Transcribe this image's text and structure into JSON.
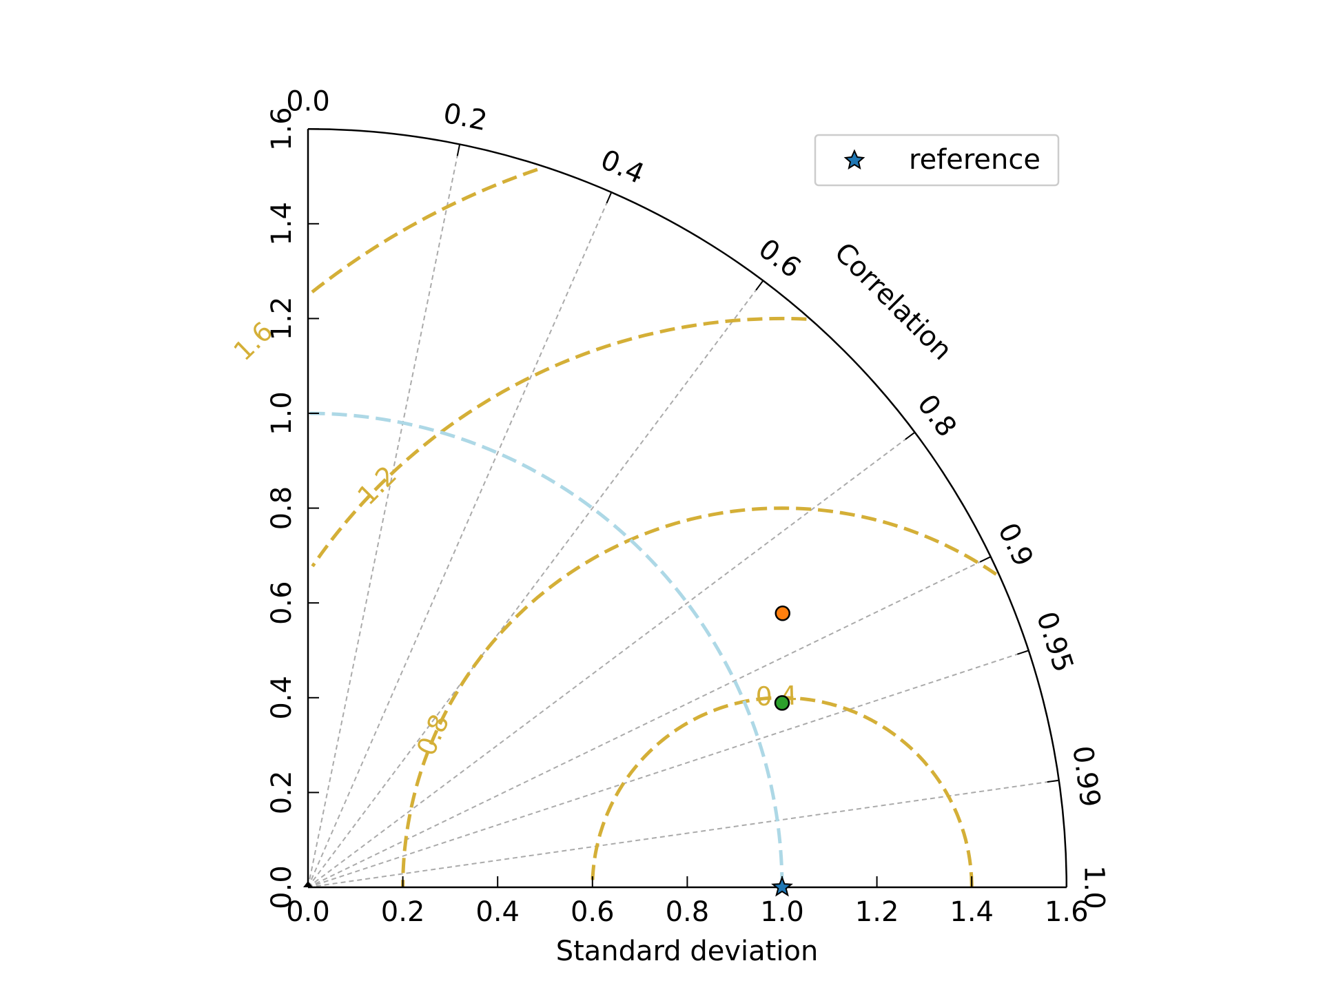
{
  "chart_data": {
    "type": "taylor-diagram",
    "xlabel": "Standard deviation",
    "correlation_label": "Correlation",
    "std_range": [
      0,
      1.6
    ],
    "std_ticks": [
      "0.0",
      "0.2",
      "0.4",
      "0.6",
      "0.8",
      "1.0",
      "1.2",
      "1.4",
      "1.6"
    ],
    "correlation_ticks": [
      "0.0",
      "0.2",
      "0.4",
      "0.6",
      "0.8",
      "0.9",
      "0.95",
      "0.99",
      "1.0"
    ],
    "rms_contours": [
      0.4,
      0.8,
      1.2,
      1.6
    ],
    "rms_contour_labels": [
      "0.4",
      "0.8",
      "1.2",
      "1.6"
    ],
    "reference": {
      "name": "reference",
      "std": 1.0,
      "correlation": 1.0
    },
    "points": [
      {
        "std": 1.156,
        "correlation": 0.866,
        "color": "#ff7f0e"
      },
      {
        "std": 1.073,
        "correlation": 0.932,
        "color": "#2ca02c"
      }
    ],
    "legend": {
      "position": "upper-right",
      "entries": [
        "reference"
      ]
    },
    "colors": {
      "rms_contour": "#d4af37",
      "reference_arc": "#add8e6",
      "grid": "#aaaaaa",
      "reference_marker": "#1f77b4"
    }
  }
}
